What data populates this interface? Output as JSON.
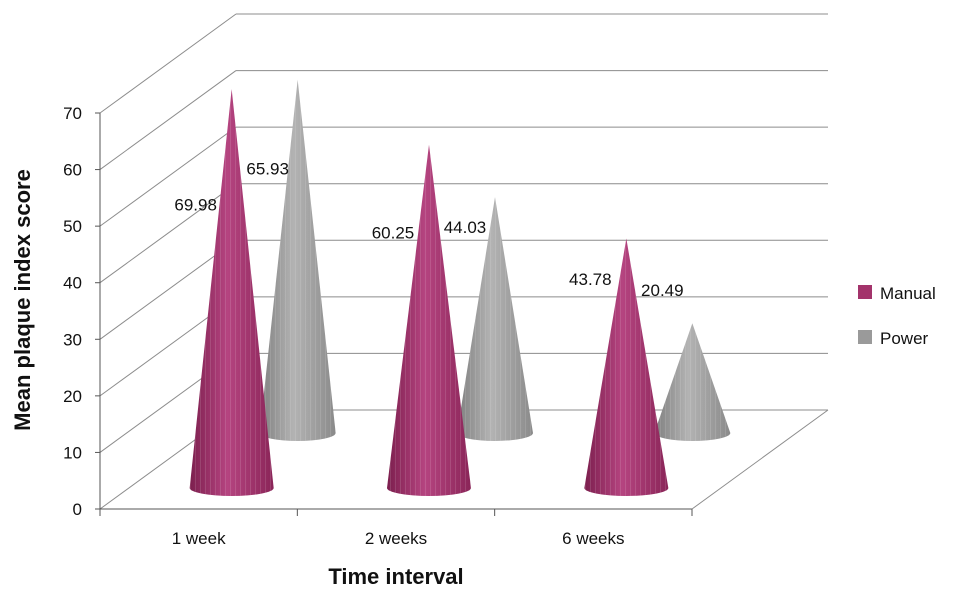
{
  "chart_data": {
    "type": "bar",
    "style": "3d-cone",
    "categories": [
      "1 week",
      "2 weeks",
      "6 weeks"
    ],
    "series": [
      {
        "name": "Manual",
        "values": [
          69.98,
          60.25,
          43.78
        ],
        "labels": [
          "69.98",
          "60.25",
          "43.78"
        ],
        "color": "#a3336b"
      },
      {
        "name": "Power",
        "values": [
          65.93,
          44.03,
          20.49
        ],
        "labels": [
          "65.93",
          "44.03",
          "20.49"
        ],
        "color": "#9a9a9a"
      }
    ],
    "yticks": [
      "0",
      "10",
      "20",
      "30",
      "40",
      "50",
      "60",
      "70"
    ],
    "ylim": [
      0,
      70
    ],
    "ylabel": "Mean plaque index score",
    "xlabel": "Time interval",
    "grid": true,
    "legend_position": "right"
  }
}
